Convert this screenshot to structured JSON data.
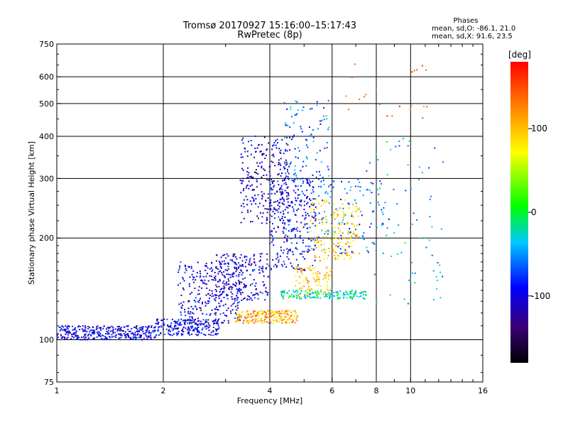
{
  "chart_data": {
    "type": "scatter",
    "title": "Tromsø 20170927 15:16:00–15:17:43",
    "subtitle": "RwPretec (8p)",
    "xlabel": "Frequency [MHz]",
    "ylabel": "Stationary phase Virtual Height [km]",
    "x_scale": "log",
    "y_scale": "log",
    "xlim": [
      1,
      16
    ],
    "ylim": [
      75,
      750
    ],
    "x_ticks": [
      "1",
      "2",
      "4",
      "6",
      "8",
      "10",
      "16"
    ],
    "x_tick_values": [
      1,
      2,
      4,
      6,
      8,
      10,
      16
    ],
    "y_ticks": [
      "75",
      "100",
      "200",
      "300",
      "400",
      "500",
      "600",
      "750"
    ],
    "y_tick_values": [
      75,
      100,
      200,
      300,
      400,
      500,
      600,
      750
    ],
    "grid": true,
    "phase_stats": {
      "heading": "Phases",
      "line_o": "mean, sd,O: -86.1, 21.0",
      "line_x": "mean, sd,X:  91.6, 23.5"
    },
    "colorbar": {
      "label": "[deg]",
      "range": [
        -180,
        180
      ],
      "ticks": [
        "100",
        "0",
        "-100"
      ],
      "tick_values": [
        100,
        0,
        -100
      ],
      "colormap": "rainbow"
    },
    "clusters": [
      {
        "f": [
          1.0,
          1.9
        ],
        "h": [
          100,
          110
        ],
        "phase": -100,
        "n": 340
      },
      {
        "f": [
          1.9,
          2.9
        ],
        "h": [
          103,
          115
        ],
        "phase": -95,
        "n": 220
      },
      {
        "f": [
          2.2,
          3.3
        ],
        "h": [
          112,
          170
        ],
        "phase": -100,
        "n": 260
      },
      {
        "f": [
          2.8,
          4.0
        ],
        "h": [
          130,
          180
        ],
        "phase": -105,
        "n": 220
      },
      {
        "f": [
          3.3,
          4.6
        ],
        "h": [
          220,
          400
        ],
        "phase": -110,
        "n": 260
      },
      {
        "f": [
          4.0,
          5.4
        ],
        "h": [
          160,
          300
        ],
        "phase": -95,
        "n": 280
      },
      {
        "f": [
          4.4,
          5.9
        ],
        "h": [
          280,
          510
        ],
        "phase": -60,
        "n": 110
      },
      {
        "f": [
          3.2,
          4.8
        ],
        "h": [
          112,
          122
        ],
        "phase": 110,
        "n": 200
      },
      {
        "f": [
          4.7,
          6.0
        ],
        "h": [
          135,
          165
        ],
        "phase": 100,
        "n": 100
      },
      {
        "f": [
          5.2,
          7.2
        ],
        "h": [
          170,
          260
        ],
        "phase": 95,
        "n": 180
      },
      {
        "f": [
          5.5,
          8.5
        ],
        "h": [
          180,
          300
        ],
        "phase": -60,
        "n": 110
      },
      {
        "f": [
          4.3,
          7.5
        ],
        "h": [
          132,
          140
        ],
        "phase": -20,
        "n": 160
      },
      {
        "f": [
          7.5,
          12.5
        ],
        "h": [
          120,
          400
        ],
        "phase": -40,
        "n": 80
      },
      {
        "f": [
          6.5,
          12.5
        ],
        "h": [
          450,
          660
        ],
        "phase": 140,
        "n": 22
      }
    ]
  }
}
